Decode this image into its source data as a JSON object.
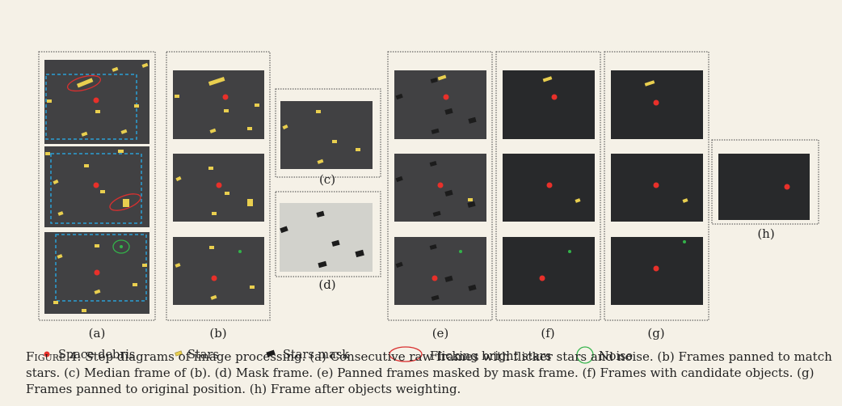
{
  "figure": {
    "panel_labels": {
      "a": "(a)",
      "b": "(b)",
      "c": "(c)",
      "d": "(d)",
      "e": "(e)",
      "f": "(f)",
      "g": "(g)",
      "h": "(h)"
    },
    "legend": {
      "space_debris": "Space debris",
      "stars": "Stars",
      "stars_mask": "Stars mask",
      "flicking_bright_stars": "Flicking bright stars",
      "noise": "Noise"
    },
    "colors": {
      "debris": "#e8302a",
      "star": "#e9cf4f",
      "mask": "#1c1c1c",
      "noise": "#33b34a",
      "flicker_ring": "#d93030",
      "crop_box": "#2b9fd6",
      "frame_gray": "#414143",
      "frame_dark": "#28292b",
      "frame_light": "#d2d2cc"
    }
  },
  "caption": {
    "label": "Figure 4:",
    "text": "Step diagrams of image processing. (a) Consecutive raw frames with flicker stars and noise. (b) Frames panned to match stars. (c) Median frame of (b). (d) Mask frame. (e) Panned frames masked by mask frame. (f) Frames with candidate objects. (g) Frames panned to original position. (h) Frame after objects weighting."
  }
}
